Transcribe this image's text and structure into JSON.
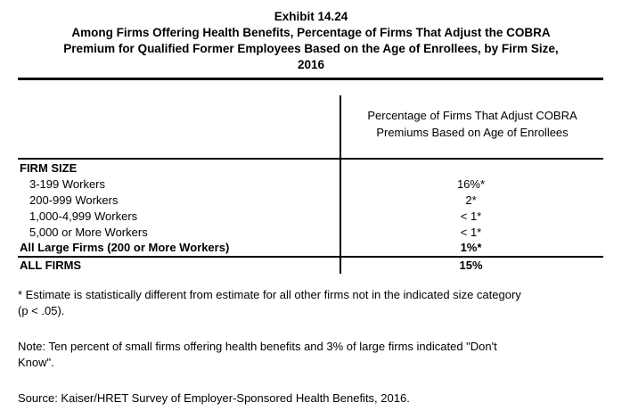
{
  "title": {
    "lines": [
      "Exhibit 14.24",
      "Among Firms Offering Health Benefits, Percentage of Firms That Adjust the COBRA",
      "Premium for Qualified Former Employees Based on the Age of Enrollees, by Firm Size,",
      "2016"
    ]
  },
  "table": {
    "col_header_lines": [
      "Percentage of Firms That Adjust COBRA",
      "Premiums Based on Age of Enrollees"
    ],
    "rows": [
      {
        "label": "FIRM SIZE",
        "value": ""
      },
      {
        "label": "3-199 Workers",
        "value": "16%*"
      },
      {
        "label": "200-999 Workers",
        "value": "2*"
      },
      {
        "label": "1,000-4,999 Workers",
        "value": "< 1*"
      },
      {
        "label": "5,000 or More Workers",
        "value": "< 1*"
      },
      {
        "label": "All Large Firms (200 or More Workers)",
        "value": "1%*"
      },
      {
        "label": "ALL FIRMS",
        "value": "15%"
      }
    ]
  },
  "footnotes": {
    "significance_lines": [
      "* Estimate is statistically different from estimate for all other firms not in the indicated size category",
      "(p < .05)."
    ],
    "note_lines": [
      "Note: Ten percent of small firms offering health benefits and 3% of large firms indicated \"Don't",
      "Know\"."
    ],
    "source": "Source: Kaiser/HRET Survey of Employer-Sponsored Health Benefits, 2016."
  }
}
